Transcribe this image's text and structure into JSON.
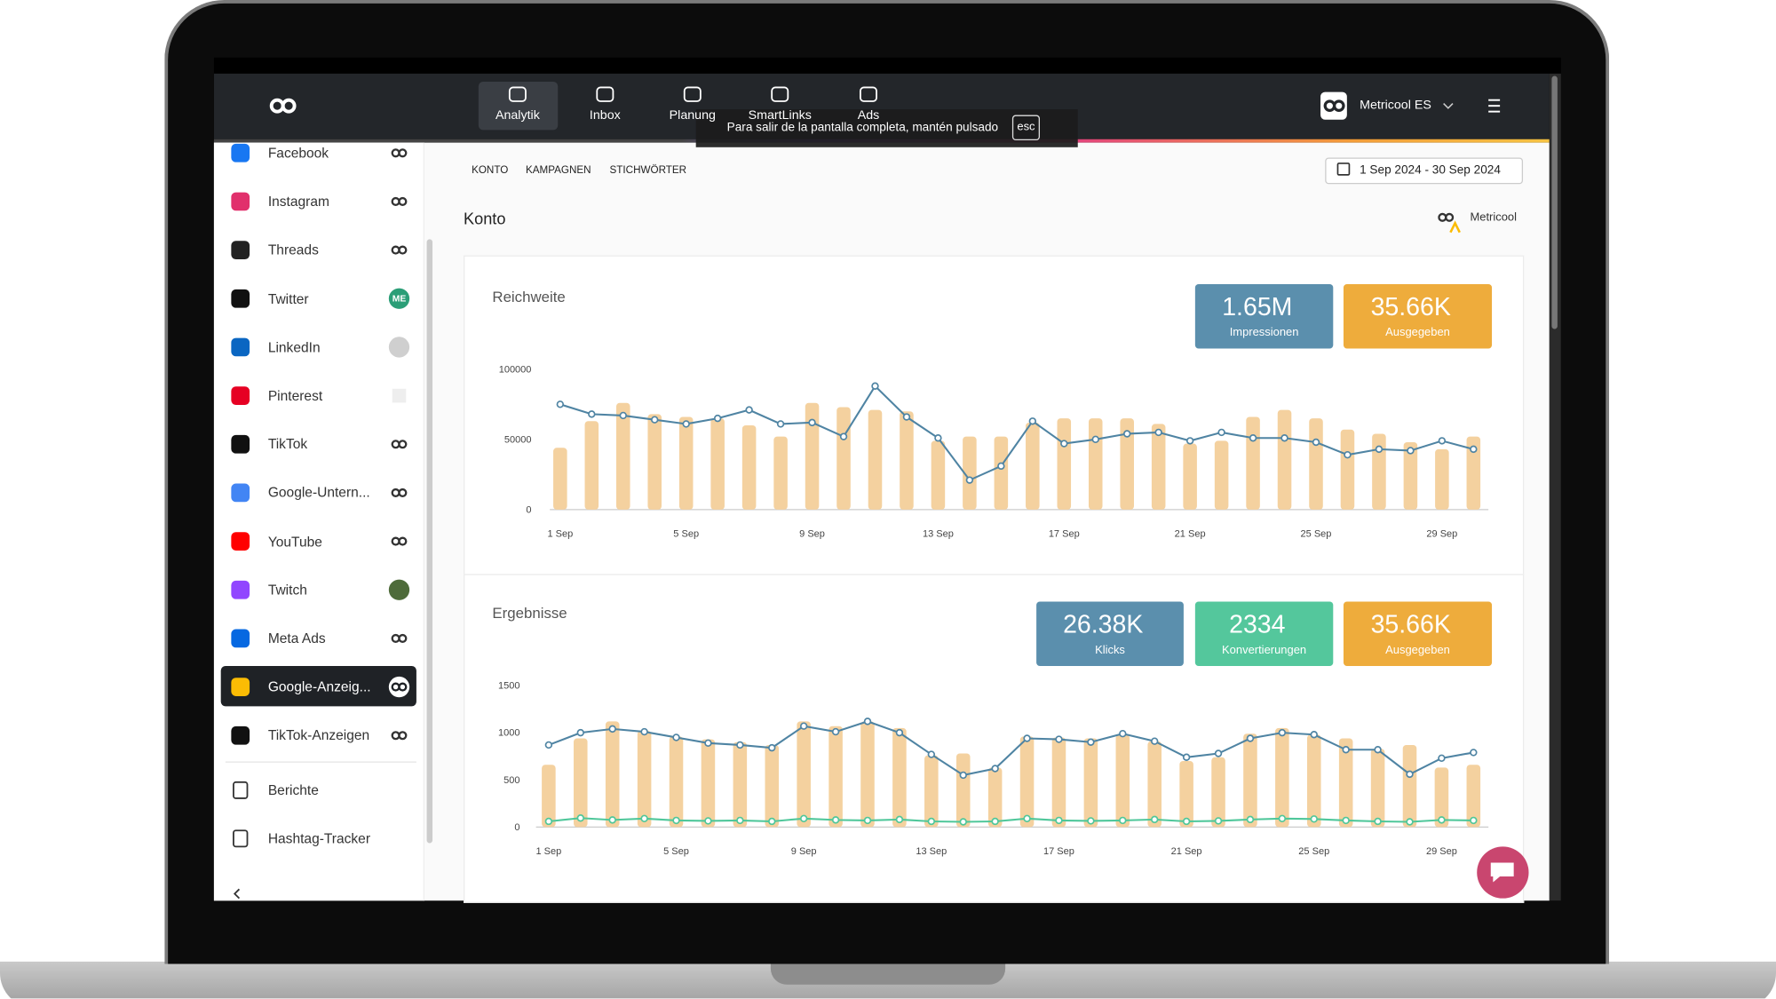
{
  "header": {
    "nav": [
      "Analytik",
      "Inbox",
      "Planung",
      "SmartLinks",
      "Ads"
    ],
    "account": "Metricool ES"
  },
  "fullscreen_notice": {
    "text": "Para salir de la pantalla completa, mantén pulsado",
    "key": "esc"
  },
  "sidebar": {
    "items": [
      {
        "label": "Facebook"
      },
      {
        "label": "Instagram"
      },
      {
        "label": "Threads"
      },
      {
        "label": "Twitter",
        "badge": "ME"
      },
      {
        "label": "LinkedIn"
      },
      {
        "label": "Pinterest"
      },
      {
        "label": "TikTok"
      },
      {
        "label": "Google-Untern..."
      },
      {
        "label": "YouTube"
      },
      {
        "label": "Twitch"
      },
      {
        "label": "Meta Ads"
      },
      {
        "label": "Google-Anzeig..."
      },
      {
        "label": "TikTok-Anzeigen"
      }
    ],
    "tools": [
      "Berichte",
      "Hashtag-Tracker"
    ]
  },
  "tabs": [
    "KONTO",
    "KAMPAGNEN",
    "STICHWÖRTER"
  ],
  "date_range": "1 Sep 2024 - 30 Sep 2024",
  "section_title": "Konto",
  "brand": "Metricool",
  "chart_data": [
    {
      "type": "combo",
      "title": "Reichweite",
      "stats": [
        {
          "value": "1.65M",
          "label": "Impressionen",
          "color": "#5b8fad"
        },
        {
          "value": "35.66K",
          "label": "Ausgegeben",
          "color": "#eeac3c"
        }
      ],
      "categories": [
        "1 Sep",
        null,
        null,
        null,
        "5 Sep",
        null,
        null,
        null,
        "9 Sep",
        null,
        null,
        null,
        "13 Sep",
        null,
        null,
        null,
        "17 Sep",
        null,
        null,
        null,
        "21 Sep",
        null,
        null,
        null,
        "25 Sep",
        null,
        null,
        null,
        "29 Sep",
        null
      ],
      "series": [
        {
          "type": "bar",
          "color": "#f4d19f",
          "values": [
            44000,
            63000,
            76000,
            68000,
            66000,
            65000,
            60000,
            52000,
            76000,
            73000,
            71000,
            70000,
            49000,
            52000,
            52000,
            62000,
            65000,
            65000,
            65000,
            61000,
            47000,
            49000,
            66000,
            71000,
            65000,
            57000,
            54000,
            48000,
            43000,
            52000
          ]
        },
        {
          "type": "line",
          "color": "#4f84a3",
          "values": [
            75000,
            68000,
            67000,
            64000,
            61000,
            65000,
            71000,
            61000,
            62000,
            52000,
            88000,
            66000,
            51000,
            21000,
            31000,
            63000,
            47000,
            50000,
            54000,
            55000,
            49000,
            55000,
            51000,
            51000,
            48000,
            39000,
            43000,
            42000,
            49000,
            43000
          ]
        }
      ],
      "ylim": [
        0,
        100000
      ],
      "yticks": [
        0,
        50000,
        100000
      ],
      "grid": false
    },
    {
      "type": "combo",
      "title": "Ergebnisse",
      "stats": [
        {
          "value": "26.38K",
          "label": "Klicks",
          "color": "#5b8fad"
        },
        {
          "value": "2334",
          "label": "Konvertierungen",
          "color": "#54c79c"
        },
        {
          "value": "35.66K",
          "label": "Ausgegeben",
          "color": "#eeac3c"
        }
      ],
      "categories": [
        "1 Sep",
        null,
        null,
        null,
        "5 Sep",
        null,
        null,
        null,
        "9 Sep",
        null,
        null,
        null,
        "13 Sep",
        null,
        null,
        null,
        "17 Sep",
        null,
        null,
        null,
        "21 Sep",
        null,
        null,
        null,
        "25 Sep",
        null,
        null,
        null,
        "29 Sep",
        null
      ],
      "series": [
        {
          "type": "bar",
          "color": "#f4d19f",
          "values": [
            660,
            940,
            1120,
            1020,
            960,
            930,
            900,
            870,
            1120,
            1070,
            1120,
            1050,
            760,
            780,
            630,
            960,
            950,
            940,
            980,
            910,
            700,
            740,
            990,
            1050,
            980,
            940,
            830,
            870,
            630,
            660
          ]
        },
        {
          "type": "line",
          "color": "#4f84a3",
          "values": [
            870,
            1000,
            1040,
            1010,
            950,
            890,
            870,
            840,
            1070,
            1010,
            1120,
            1000,
            770,
            550,
            620,
            940,
            930,
            900,
            990,
            910,
            740,
            780,
            940,
            1000,
            980,
            820,
            820,
            560,
            730,
            790
          ]
        },
        {
          "type": "line",
          "color": "#4fc79a",
          "values": [
            60,
            95,
            75,
            90,
            70,
            65,
            70,
            60,
            90,
            75,
            70,
            80,
            60,
            55,
            60,
            90,
            70,
            65,
            70,
            80,
            60,
            65,
            80,
            90,
            85,
            70,
            60,
            55,
            75,
            70
          ]
        }
      ],
      "ylim": [
        0,
        1500
      ],
      "yticks": [
        0,
        500,
        1000,
        1500
      ],
      "grid": false
    }
  ]
}
